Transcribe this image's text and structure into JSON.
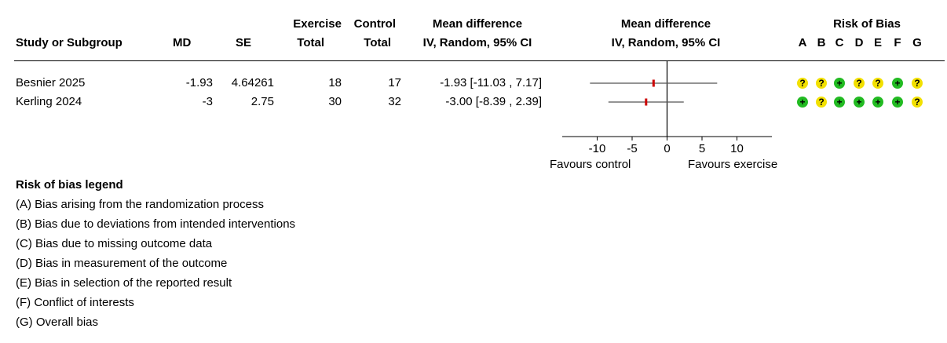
{
  "headers": {
    "study": "Study or Subgroup",
    "md": "MD",
    "se": "SE",
    "exercise_top": "Exercise",
    "exercise_bottom": "Total",
    "control_top": "Control",
    "control_bottom": "Total",
    "md_ci_top": "Mean difference",
    "md_ci_bottom": "IV, Random, 95% CI",
    "plot_top": "Mean difference",
    "plot_bottom": "IV, Random, 95% CI",
    "rob_title": "Risk of Bias",
    "rob_cols": [
      "A",
      "B",
      "C",
      "D",
      "E",
      "F",
      "G"
    ]
  },
  "rows": [
    {
      "study": "Besnier 2025",
      "md": "-1.93",
      "se": "4.64261",
      "exercise_total": "18",
      "control_total": "17",
      "ci_text": "-1.93 [-11.03 , 7.17]"
    },
    {
      "study": "Kerling 2024",
      "md": "-3",
      "se": "2.75",
      "exercise_total": "30",
      "control_total": "32",
      "ci_text": "-3.00 [-8.39 , 2.39]"
    }
  ],
  "chart_data": {
    "type": "forest",
    "studies": [
      {
        "name": "Besnier 2025",
        "estimate": -1.93,
        "ci_low": -11.03,
        "ci_high": 7.17
      },
      {
        "name": "Kerling 2024",
        "estimate": -3.0,
        "ci_low": -8.39,
        "ci_high": 2.39
      }
    ],
    "xlim": [
      -15,
      15
    ],
    "ticks": [
      -10,
      -5,
      0,
      5,
      10
    ],
    "tick_labels": [
      "-10",
      "-5",
      "0",
      "5",
      "10"
    ],
    "favours_left": "Favours control",
    "favours_right": "Favours exercise",
    "marker_color": "#cc0000",
    "line_color": "#555555"
  },
  "risk_of_bias": {
    "symbols": {
      "low": "+",
      "some": "?"
    },
    "colors": {
      "low": "#22bb22",
      "some": "#f2e000"
    },
    "rows": [
      [
        "some",
        "some",
        "low",
        "some",
        "some",
        "low",
        "some"
      ],
      [
        "low",
        "some",
        "low",
        "low",
        "low",
        "low",
        "some"
      ]
    ]
  },
  "legend": {
    "title": "Risk of bias legend",
    "items": [
      "(A) Bias arising from the randomization process",
      "(B) Bias due to deviations from intended interventions",
      "(C) Bias due to missing outcome data",
      "(D) Bias in measurement of the outcome",
      "(E) Bias in selection of the reported result",
      "(F) Conflict of interests",
      "(G) Overall bias"
    ]
  }
}
